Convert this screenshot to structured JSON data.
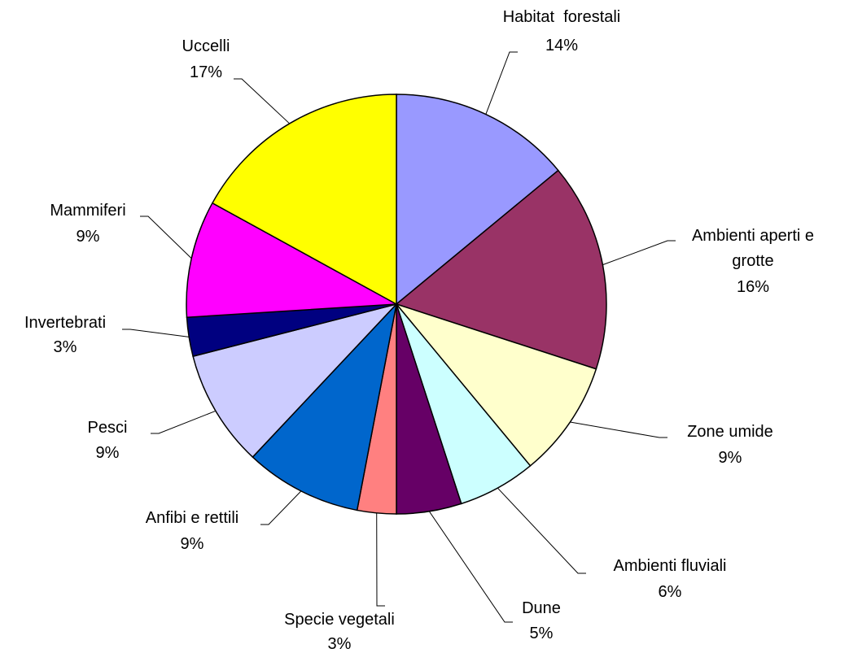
{
  "chart_data": {
    "type": "pie",
    "categories": [
      "Habitat  forestali",
      "Ambienti aperti e grotte",
      "Zone umide",
      "Ambienti fluviali",
      "Dune",
      "Specie vegetali",
      "Anfibi e rettili",
      "Pesci",
      "Invertebrati",
      "Mammiferi",
      "Uccelli"
    ],
    "values": [
      14,
      16,
      9,
      6,
      5,
      3,
      9,
      9,
      3,
      9,
      17
    ],
    "value_labels": [
      "14%",
      "16%",
      "9%",
      "6%",
      "5%",
      "3%",
      "9%",
      "9%",
      "3%",
      "9%",
      "17%"
    ],
    "colors": [
      "#9999ff",
      "#993366",
      "#ffffcc",
      "#ccffff",
      "#660066",
      "#ff8080",
      "#0066cc",
      "#ccccff",
      "#000080",
      "#ff00ff",
      "#ffff00"
    ]
  }
}
